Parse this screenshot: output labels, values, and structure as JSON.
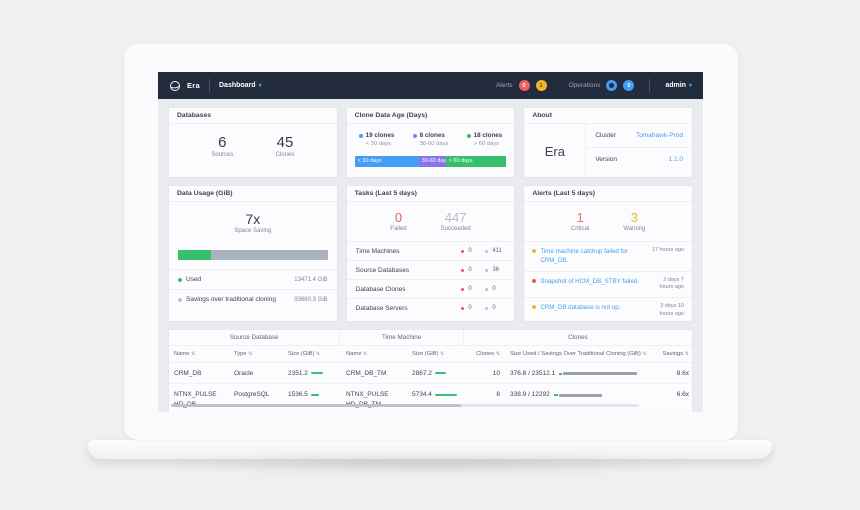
{
  "colors": {
    "nav_bg": "#232c3c",
    "accent_blue": "#459df5",
    "green": "#37c06c",
    "red": "#e65c5c",
    "yellow": "#f1b42c",
    "purple": "#8876e8",
    "gray_bar": "#a9b2bf"
  },
  "nav": {
    "brand": "Era",
    "menu": "Dashboard",
    "alerts_label": "Alerts",
    "alerts_critical_badge": "0",
    "alerts_warning_badge": "1",
    "operations_label": "Operations",
    "operations_badge": "0",
    "user": "admin"
  },
  "databases": {
    "title": "Databases",
    "stats": [
      {
        "value": "6",
        "label": "Sources"
      },
      {
        "value": "45",
        "label": "Clones"
      }
    ]
  },
  "clone_age": {
    "title": "Clone Data Age (Days)",
    "legend": [
      {
        "count": "19 clones",
        "range": "< 30 days"
      },
      {
        "count": "8 clones",
        "range": "30-60 days"
      },
      {
        "count": "18 clones",
        "range": "> 60 days"
      }
    ],
    "bar": [
      {
        "label": "< 30 days",
        "pct": 42.2
      },
      {
        "label": "30-60 days",
        "pct": 17.8
      },
      {
        "label": "> 60 days",
        "pct": 40.0
      }
    ]
  },
  "about": {
    "title": "About",
    "brand": "Era",
    "rows": [
      {
        "label": "Cluster",
        "value": "Tomahawk-Prod"
      },
      {
        "label": "Version",
        "value": "1.1.0"
      }
    ]
  },
  "data_usage": {
    "title": "Data Usage (GiB)",
    "headline": "7x",
    "subtitle": "Space Saving",
    "used_pct": 22,
    "rows": [
      {
        "label": "Used",
        "value": "13471.4 GiB"
      },
      {
        "label": "Savings over traditional cloning",
        "value": "93660.3 GiB"
      }
    ]
  },
  "tasks": {
    "title": "Tasks (Last 5 days)",
    "stats": [
      {
        "value": "0",
        "label": "Failed"
      },
      {
        "value": "447",
        "label": "Succeeded"
      }
    ],
    "rows": [
      {
        "label": "Time Machines",
        "failed": "0",
        "succeeded": "411"
      },
      {
        "label": "Source Databases",
        "failed": "0",
        "succeeded": "36"
      },
      {
        "label": "Database Clones",
        "failed": "0",
        "succeeded": "0"
      },
      {
        "label": "Database Servers",
        "failed": "0",
        "succeeded": "0"
      }
    ]
  },
  "alerts": {
    "title": "Alerts (Last 5 days)",
    "stats": [
      {
        "value": "1",
        "label": "Critical"
      },
      {
        "value": "3",
        "label": "Warning"
      }
    ],
    "items": [
      {
        "text": "Time machine catchup failed for CRM_DB.",
        "time": "17 hours ago",
        "severity": "warning"
      },
      {
        "text": "Snapshot of HCM_DB_STBY failed.",
        "time": "2 days 7 hours ago",
        "severity": "critical"
      },
      {
        "text": "CRM_DB database is not up.",
        "time": "3 days 10 hours ago",
        "severity": "warning"
      }
    ]
  },
  "table": {
    "groups": [
      "Source Database",
      "Time Machine",
      "Clones"
    ],
    "columns": [
      "Name",
      "Type",
      "Size (GiB)",
      "Name",
      "Size (GiB)",
      "Clones",
      "Size Used / Savings Over Traditional Cloning (GiB)",
      "Savings"
    ],
    "rows": [
      {
        "source_name": "CRM_DB",
        "type": "Oracle",
        "source_size": "2351.2",
        "source_bar": 55,
        "tm_name": "CRM_DB_TM",
        "tm_size": "2867.2",
        "tm_bar": 50,
        "clones": "10",
        "size_used": "376.8 / 23512.1",
        "sv_green": 4,
        "sv_gray": 96,
        "savings": "8.6x"
      },
      {
        "source_name": "NTNX_PULSE HD_DB",
        "type": "PostgreSQL",
        "source_size": "1536.5",
        "source_bar": 36,
        "tm_name": "NTNX_PULSE HD_DB_TM",
        "tm_size": "5734.4",
        "tm_bar": 100,
        "clones": "8",
        "size_used": "338.9 / 12292",
        "sv_green": 5,
        "sv_gray": 55,
        "savings": "6.6x"
      }
    ]
  }
}
